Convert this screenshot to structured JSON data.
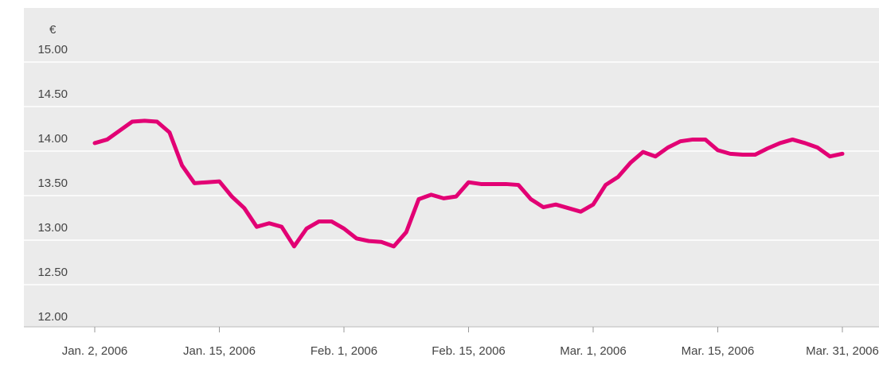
{
  "chart_data": {
    "type": "line",
    "unit": "€",
    "categories": [
      "Jan. 2, 2006",
      null,
      null,
      null,
      null,
      null,
      null,
      null,
      null,
      null,
      "Jan. 15, 2006",
      null,
      null,
      null,
      null,
      null,
      null,
      null,
      null,
      null,
      "Feb. 1, 2006",
      null,
      null,
      null,
      null,
      null,
      null,
      null,
      null,
      null,
      "Feb. 15, 2006",
      null,
      null,
      null,
      null,
      null,
      null,
      null,
      null,
      null,
      "Mar. 1, 2006",
      null,
      null,
      null,
      null,
      null,
      null,
      null,
      null,
      null,
      "Mar. 15, 2006",
      null,
      null,
      null,
      null,
      null,
      null,
      null,
      null,
      null,
      "Mar. 31, 2006"
    ],
    "series": [
      {
        "color": "#e20074",
        "values": [
          14.09,
          14.13,
          14.23,
          14.33,
          14.34,
          14.33,
          14.21,
          13.84,
          13.64,
          13.65,
          13.66,
          13.49,
          13.36,
          13.15,
          13.19,
          13.15,
          12.93,
          13.13,
          13.21,
          13.21,
          13.13,
          13.02,
          12.99,
          12.98,
          12.93,
          13.09,
          13.46,
          13.51,
          13.47,
          13.49,
          13.65,
          13.63,
          13.63,
          13.63,
          13.62,
          13.46,
          13.37,
          13.4,
          13.36,
          13.32,
          13.4,
          13.62,
          13.71,
          13.87,
          13.99,
          13.94,
          14.04,
          14.11,
          14.13,
          14.13,
          14.01,
          13.97,
          13.96,
          13.96,
          14.03,
          14.09,
          14.13,
          14.09,
          14.04,
          13.94,
          13.97
        ]
      }
    ],
    "ylim": [
      12,
      15
    ],
    "yticks": [
      {
        "value": 12,
        "label": "12.00"
      },
      {
        "value": 12.5,
        "label": "12.50"
      },
      {
        "value": 13,
        "label": "13.00"
      },
      {
        "value": 13.5,
        "label": "13.50"
      },
      {
        "value": 14,
        "label": "14.00"
      },
      {
        "value": 14.5,
        "label": "14.50"
      },
      {
        "value": 15,
        "label": "15.00"
      }
    ],
    "grid": true
  }
}
